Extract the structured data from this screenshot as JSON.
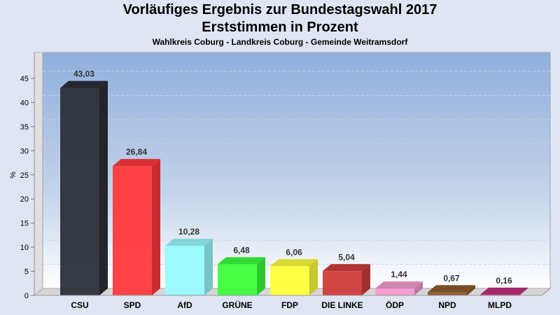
{
  "chart_data": {
    "type": "bar",
    "title": "Vorläufiges Ergebnis zur Bundestagswahl 2017",
    "subtitle": "Erststimmen in Prozent",
    "subsubtitle": "Wahlkreis Coburg - Landkreis Coburg - Gemeinde Weitramsdorf",
    "xlabel": "",
    "ylabel": "%",
    "ylim": [
      0,
      45
    ],
    "yticks": [
      0,
      5,
      10,
      15,
      20,
      25,
      30,
      35,
      40,
      45
    ],
    "grid": true,
    "categories": [
      "CSU",
      "SPD",
      "AfD",
      "GRÜNE",
      "FDP",
      "DIE LINKE",
      "ÖDP",
      "NPD",
      "MLPD"
    ],
    "values": [
      43.03,
      26.84,
      10.28,
      6.48,
      6.06,
      5.04,
      1.44,
      0.67,
      0.16
    ],
    "value_labels": [
      "43,03",
      "26,84",
      "10,28",
      "6,48",
      "6,06",
      "5,04",
      "1,44",
      "0,67",
      "0,16"
    ],
    "colors": [
      "#2b2f38",
      "#ff3a3e",
      "#99fbff",
      "#3cff3c",
      "#ffff3c",
      "#d03c3c",
      "#f59ad0",
      "#8b5a2b",
      "#c0307a"
    ]
  }
}
